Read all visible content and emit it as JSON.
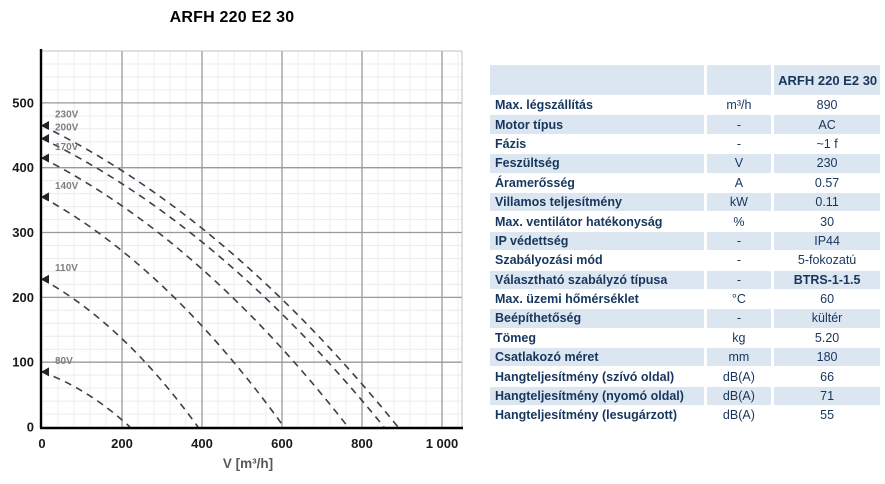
{
  "page": {
    "background": "#ffffff"
  },
  "chart": {
    "title": "ARFH 220 E2 30",
    "xlabel": "V [m³/h]"
  },
  "chart_data": {
    "type": "line",
    "title": "ARFH 220 E2 30",
    "xlabel": "V [m³/h]",
    "ylabel": "",
    "xlim": [
      0,
      1050
    ],
    "ylim": [
      0,
      580
    ],
    "x_ticks": [
      0,
      200,
      400,
      600,
      800,
      1000
    ],
    "x_tick_labels": [
      "0",
      "200",
      "400",
      "600",
      "800",
      "1 000"
    ],
    "y_ticks": [
      0,
      100,
      200,
      300,
      400,
      500
    ],
    "y_tick_labels": [
      "0",
      "100",
      "200",
      "300",
      "400",
      "500"
    ],
    "grid": "major+minor",
    "minor_step_x": 40,
    "minor_step_y": 20,
    "legend_position": "curve-start-labels",
    "line_style": "dashed",
    "series": [
      {
        "name": "230V",
        "points": [
          [
            0,
            465
          ],
          [
            229,
            384
          ],
          [
            454,
            279
          ],
          [
            674,
            151
          ],
          [
            890,
            0
          ]
        ]
      },
      {
        "name": "200V",
        "points": [
          [
            0,
            445
          ],
          [
            220,
            367
          ],
          [
            436,
            267
          ],
          [
            648,
            145
          ],
          [
            855,
            0
          ]
        ]
      },
      {
        "name": "170V",
        "points": [
          [
            0,
            415
          ],
          [
            197,
            342
          ],
          [
            390,
            249
          ],
          [
            580,
            135
          ],
          [
            765,
            0
          ]
        ]
      },
      {
        "name": "140V",
        "points": [
          [
            0,
            355
          ],
          [
            156,
            293
          ],
          [
            309,
            213
          ],
          [
            458,
            115
          ],
          [
            605,
            0
          ]
        ]
      },
      {
        "name": "110V",
        "points": [
          [
            0,
            228
          ],
          [
            100,
            188
          ],
          [
            199,
            137
          ],
          [
            295,
            74
          ],
          [
            390,
            0
          ]
        ]
      },
      {
        "name": "80V",
        "points": [
          [
            0,
            85
          ],
          [
            57,
            70
          ],
          [
            112,
            51
          ],
          [
            167,
            28
          ],
          [
            220,
            0
          ]
        ]
      }
    ],
    "colors": {
      "curve": "#39414d",
      "curve_label": "#7f7f7f",
      "major_grid": "#9a9a9a",
      "minor_grid": "#ececec",
      "axis": "#000000",
      "plot_border": "#c0c0c0",
      "tick_text": "#1a1a1a",
      "axis_label_text": "#595959"
    }
  },
  "table": {
    "header": {
      "label": "",
      "unit": "",
      "value": "ARFH 220 E2 30"
    },
    "rows": [
      {
        "label": "Max. légszállítás",
        "unit": "m³/h",
        "value": "890",
        "bold_value": false
      },
      {
        "label": "Motor típus",
        "unit": "-",
        "value": "AC",
        "bold_value": false
      },
      {
        "label": "Fázis",
        "unit": "-",
        "value": "~1 f",
        "bold_value": false
      },
      {
        "label": "Feszültség",
        "unit": "V",
        "value": "230",
        "bold_value": false
      },
      {
        "label": "Áramerősség",
        "unit": "A",
        "value": "0.57",
        "bold_value": false
      },
      {
        "label": "Villamos teljesítmény",
        "unit": "kW",
        "value": "0.11",
        "bold_value": false
      },
      {
        "label": "Max. ventilátor hatékonyság",
        "unit": "%",
        "value": "30",
        "bold_value": false
      },
      {
        "label": "IP védettség",
        "unit": "-",
        "value": "IP44",
        "bold_value": false
      },
      {
        "label": "Szabályozási mód",
        "unit": "-",
        "value": "5-fokozatú",
        "bold_value": false
      },
      {
        "label": "Választható szabályzó típusa",
        "unit": "-",
        "value": "BTRS-1-1.5",
        "bold_value": true
      },
      {
        "label": "Max. üzemi hőmérséklet",
        "unit": "°C",
        "value": "60",
        "bold_value": false
      },
      {
        "label": "Beépíthetőség",
        "unit": "-",
        "value": "kültér",
        "bold_value": false
      },
      {
        "label": "Tömeg",
        "unit": "kg",
        "value": "5.20",
        "bold_value": false
      },
      {
        "label": "Csatlakozó méret",
        "unit": "mm",
        "value": "180",
        "bold_value": false
      },
      {
        "label": "Hangteljesítmény (szívó oldal)",
        "unit": "dB(A)",
        "value": "66",
        "bold_value": false
      },
      {
        "label": "Hangteljesítmény (nyomó oldal)",
        "unit": "dB(A)",
        "value": "71",
        "bold_value": false
      },
      {
        "label": "Hangteljesítmény (lesugárzott)",
        "unit": "dB(A)",
        "value": "55",
        "bold_value": false
      }
    ],
    "colors": {
      "alt_row": "#dce6f1",
      "text": "#17365d"
    }
  }
}
